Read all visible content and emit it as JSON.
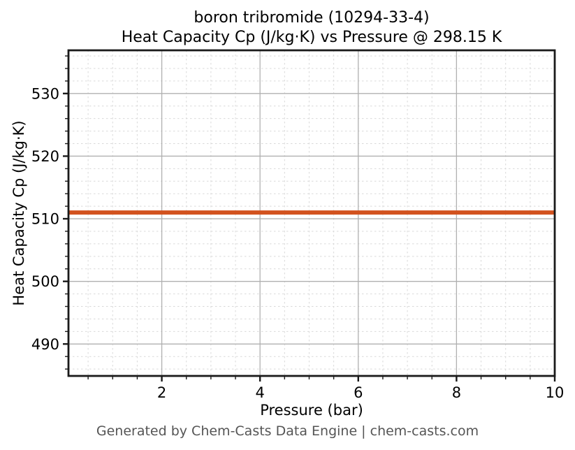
{
  "chart_data": {
    "type": "line",
    "title_line1": "boron tribromide (10294-33-4)",
    "title_line2": "Heat Capacity Cp (J/kg·K) vs Pressure @ 298.15 K",
    "xlabel": "Pressure (bar)",
    "ylabel": "Heat Capacity Cp (J/kg·K)",
    "footer": "Generated by Chem-Casts Data Engine | chem-casts.com",
    "xlim": [
      0.1,
      10
    ],
    "ylim": [
      484.9,
      536.9
    ],
    "x_major_ticks": [
      2,
      4,
      6,
      8,
      10
    ],
    "x_minor_step": 0.5,
    "y_major_ticks": [
      490,
      500,
      510,
      520,
      530
    ],
    "y_minor_step": 2,
    "grid": {
      "major_color": "#b0b0b0",
      "minor_color": "#d9d9d9",
      "minor_dash": "2.5 3.5"
    },
    "axes": {
      "spine_color": "#1a1a1a",
      "tick_color": "#1a1a1a",
      "tick_label_color": "#000000"
    },
    "series": [
      {
        "name": "Heat Capacity Cp",
        "x": [
          0.1,
          10
        ],
        "y": [
          511,
          511
        ],
        "color": "#d2521e",
        "linewidth": 6
      }
    ]
  }
}
